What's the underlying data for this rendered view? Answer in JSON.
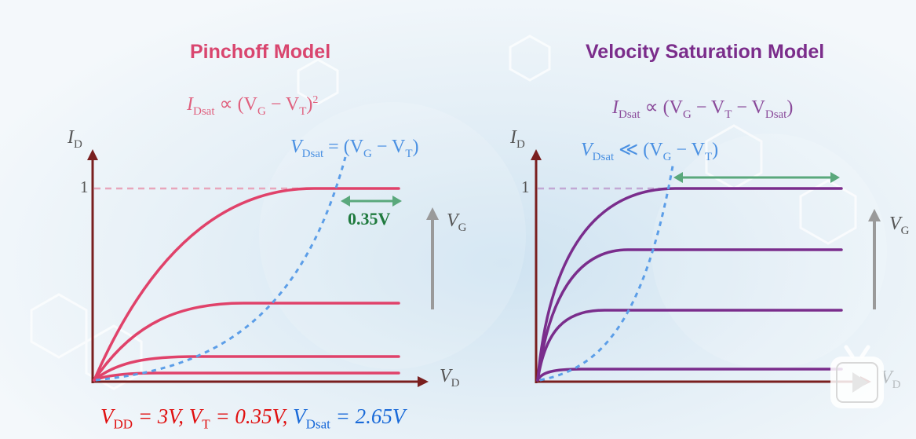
{
  "left_panel": {
    "title": "Pinchoff Model",
    "formula_top": "I",
    "formula_top_sub": "Dsat",
    "formula_top_rest": " ∝ (V",
    "formula_top_g": "G",
    "formula_top_mid": " − V",
    "formula_top_t": "T",
    "formula_top_end": ")",
    "formula_top_exp": "2",
    "vdsat_formula": "V",
    "vdsat_sub": "Dsat",
    "vdsat_rest": " = (V",
    "vdsat_g": "G",
    "vdsat_mid": " − V",
    "vdsat_t": "T",
    "vdsat_end": ")",
    "y_axis_label": "I",
    "y_axis_sub": "D",
    "x_axis_label": "V",
    "x_axis_sub": "D",
    "tick_one": "1",
    "gap_label": "0.35V",
    "vg_label": "V",
    "vg_sub": "G"
  },
  "right_panel": {
    "title": "Velocity Saturation Model",
    "formula_top": "I",
    "formula_top_sub": "Dsat",
    "formula_top_rest": " ∝ (V",
    "formula_top_g": "G",
    "formula_top_mid": " − V",
    "formula_top_t": "T",
    "formula_top_mid2": " − V",
    "formula_top_dsat": "Dsat",
    "formula_top_end": ")",
    "vdsat_formula": "V",
    "vdsat_sub": "Dsat",
    "vdsat_rest": " ≪ (V",
    "vdsat_g": "G",
    "vdsat_mid": " − V",
    "vdsat_t": "T",
    "vdsat_end": ")",
    "y_axis_label": "I",
    "y_axis_sub": "D",
    "x_axis_label": "V",
    "x_axis_sub": "D",
    "tick_one": "1",
    "vg_label": "V",
    "vg_sub": "G"
  },
  "bottom": {
    "vdd": "V",
    "vdd_sub": "DD",
    "vdd_val": " = 3V, ",
    "vt": "V",
    "vt_sub": "T",
    "vt_val": " = 0.35V, ",
    "vdsat": "V",
    "vdsat_sub": "Dsat",
    "vdsat_val": " = 2.65V"
  },
  "colors": {
    "pink": "#e0426a",
    "purple": "#7a2d8c",
    "blue": "#4a90e2",
    "green": "#2e8b4e",
    "axis": "#7a1f1f",
    "red_text": "#e01010",
    "blue_text": "#1a6ad8"
  },
  "icons": {
    "play": "bilibili-play-icon"
  }
}
